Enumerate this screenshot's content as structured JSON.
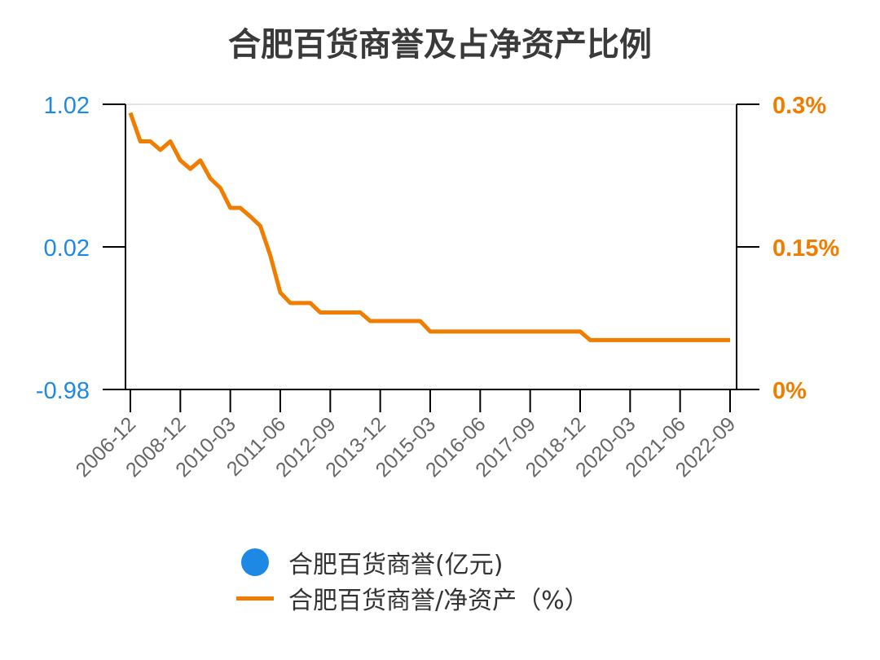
{
  "chart_data": {
    "type": "line",
    "title": "合肥百货商誉及占净资产比例",
    "colors": {
      "left": "#1e88e5",
      "right": "#f07d00",
      "title": "#3a3a3a",
      "tick": "#666666"
    },
    "left_axis": {
      "ticks": [
        "1.02",
        "0.02",
        "-0.98"
      ],
      "ylim": [
        -0.98,
        1.02
      ]
    },
    "right_axis": {
      "ticks": [
        "0.3%",
        "0.15%",
        "0%"
      ],
      "ylim": [
        0,
        0.3
      ]
    },
    "x_tick_labels": [
      "2006-12",
      "2008-12",
      "2010-03",
      "2011-06",
      "2012-09",
      "2013-12",
      "2015-03",
      "2016-06",
      "2017-09",
      "2018-12",
      "2020-03",
      "2021-06",
      "2022-09"
    ],
    "categories": [
      "2006-12",
      "2007-06",
      "2007-09",
      "2007-12",
      "2008-06",
      "2008-12",
      "2009-03",
      "2009-06",
      "2009-09",
      "2009-12",
      "2010-03",
      "2010-06",
      "2010-09",
      "2010-12",
      "2011-03",
      "2011-06",
      "2011-09",
      "2011-12",
      "2012-03",
      "2012-06",
      "2012-09",
      "2012-12",
      "2013-03",
      "2013-06",
      "2013-09",
      "2013-12",
      "2014-03",
      "2014-06",
      "2014-09",
      "2014-12",
      "2015-03",
      "2015-06",
      "2015-09",
      "2015-12",
      "2016-03",
      "2016-06",
      "2016-09",
      "2016-12",
      "2017-03",
      "2017-06",
      "2017-09",
      "2017-12",
      "2018-03",
      "2018-06",
      "2018-09",
      "2018-12",
      "2019-03",
      "2019-06",
      "2019-09",
      "2019-12",
      "2020-03",
      "2020-06",
      "2020-09",
      "2020-12",
      "2021-03",
      "2021-06",
      "2021-09",
      "2021-12",
      "2022-03",
      "2022-06",
      "2022-09"
    ],
    "series": [
      {
        "name": "合肥百货商誉(亿元)",
        "axis": "left",
        "type": "scatter",
        "values": []
      },
      {
        "name": "合肥百货商誉/净资产（%）",
        "axis": "right",
        "type": "line",
        "values": [
          0.291,
          0.261,
          0.261,
          0.252,
          0.261,
          0.241,
          0.232,
          0.241,
          0.222,
          0.212,
          0.191,
          0.191,
          0.182,
          0.172,
          0.141,
          0.102,
          0.091,
          0.091,
          0.091,
          0.081,
          0.081,
          0.081,
          0.081,
          0.081,
          0.072,
          0.072,
          0.072,
          0.072,
          0.072,
          0.072,
          0.061,
          0.061,
          0.061,
          0.061,
          0.061,
          0.061,
          0.061,
          0.061,
          0.061,
          0.061,
          0.061,
          0.061,
          0.061,
          0.061,
          0.061,
          0.061,
          0.052,
          0.052,
          0.052,
          0.052,
          0.052,
          0.052,
          0.052,
          0.052,
          0.052,
          0.052,
          0.052,
          0.052,
          0.052,
          0.052,
          0.052
        ]
      }
    ],
    "grid": "top line only",
    "legend_position": "bottom"
  }
}
